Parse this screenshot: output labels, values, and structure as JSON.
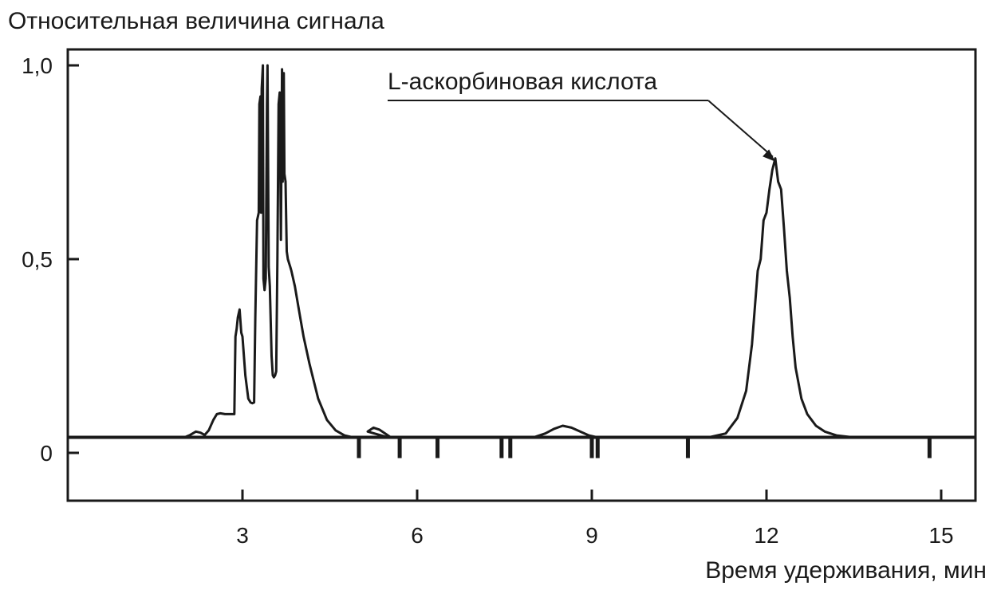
{
  "chart_data": {
    "type": "line",
    "title": "",
    "ylabel": "Относительная величина сигнала",
    "xlabel": "Время удерживания, мин",
    "xlim": [
      0,
      15.8
    ],
    "ylim": [
      -0.12,
      1.02
    ],
    "grid": false,
    "x_ticks": [
      {
        "value": 3,
        "label": "3"
      },
      {
        "value": 6,
        "label": "6"
      },
      {
        "value": 9,
        "label": "9"
      },
      {
        "value": 12,
        "label": "12"
      },
      {
        "value": 15,
        "label": "15"
      }
    ],
    "y_ticks": [
      {
        "value": 0,
        "label": "0"
      },
      {
        "value": 0.5,
        "label": "0,5"
      },
      {
        "value": 1.0,
        "label": "1,0"
      }
    ],
    "baseline": 0.04,
    "series": [
      {
        "x": [
          0,
          2.0,
          2.1,
          2.2,
          2.28,
          2.35,
          2.42,
          2.5,
          2.56,
          2.62,
          2.7,
          2.8,
          2.86,
          2.88,
          2.9,
          2.92,
          2.95,
          2.98,
          3.0,
          3.05,
          3.1,
          3.14,
          3.17,
          3.2,
          3.22,
          3.25,
          3.28,
          3.29,
          3.31,
          3.32,
          3.33,
          3.35,
          3.36,
          3.38,
          3.4,
          3.42,
          3.43,
          3.45,
          3.47,
          3.5,
          3.52,
          3.54,
          3.56,
          3.58,
          3.6,
          3.62,
          3.64,
          3.66,
          3.68,
          3.69,
          3.71,
          3.72,
          3.74,
          3.76,
          3.78,
          3.8,
          3.82,
          3.84,
          3.9,
          3.98,
          4.05,
          4.15,
          4.3,
          4.45,
          4.6,
          4.75,
          4.9,
          5.0,
          5.5,
          5.15,
          5.25,
          5.35,
          5.45,
          5.55,
          8.0,
          8.2,
          8.35,
          8.5,
          8.65,
          8.8,
          8.95,
          9.1,
          11.0,
          11.3,
          11.5,
          11.65,
          11.75,
          11.85,
          11.9,
          11.95,
          12.0,
          12.05,
          12.1,
          12.15,
          12.2,
          12.25,
          12.3,
          12.35,
          12.4,
          12.45,
          12.5,
          12.6,
          12.7,
          12.85,
          13.0,
          13.2,
          13.5,
          15.8
        ],
        "y": [
          0.04,
          0.04,
          0.046,
          0.055,
          0.052,
          0.046,
          0.058,
          0.085,
          0.1,
          0.102,
          0.1,
          0.1,
          0.1,
          0.3,
          0.32,
          0.35,
          0.37,
          0.31,
          0.3,
          0.2,
          0.14,
          0.13,
          0.128,
          0.13,
          0.35,
          0.6,
          0.62,
          0.9,
          0.92,
          0.62,
          0.94,
          1.0,
          0.45,
          0.42,
          0.45,
          0.9,
          1.0,
          0.48,
          0.43,
          0.25,
          0.2,
          0.195,
          0.2,
          0.21,
          0.5,
          0.9,
          0.93,
          0.55,
          0.99,
          0.7,
          0.98,
          0.72,
          0.7,
          0.52,
          0.5,
          0.49,
          0.48,
          0.47,
          0.43,
          0.36,
          0.3,
          0.23,
          0.14,
          0.085,
          0.058,
          0.045,
          0.04,
          0.04,
          0.04,
          0.055,
          0.065,
          0.06,
          0.05,
          0.04,
          0.04,
          0.05,
          0.062,
          0.07,
          0.065,
          0.055,
          0.045,
          0.04,
          0.04,
          0.05,
          0.09,
          0.16,
          0.28,
          0.47,
          0.5,
          0.6,
          0.62,
          0.68,
          0.73,
          0.76,
          0.7,
          0.68,
          0.58,
          0.47,
          0.4,
          0.3,
          0.22,
          0.14,
          0.1,
          0.07,
          0.055,
          0.045,
          0.04,
          0.04
        ]
      }
    ],
    "baseline_ticks_x": [
      5.0,
      5.7,
      6.35,
      7.45,
      7.6,
      9.0,
      9.1,
      10.65,
      14.8
    ],
    "annotations": [
      {
        "text": "L-аскорбиновая кислота",
        "arrow_to": {
          "x": 12.15,
          "y": 0.76
        }
      }
    ]
  }
}
